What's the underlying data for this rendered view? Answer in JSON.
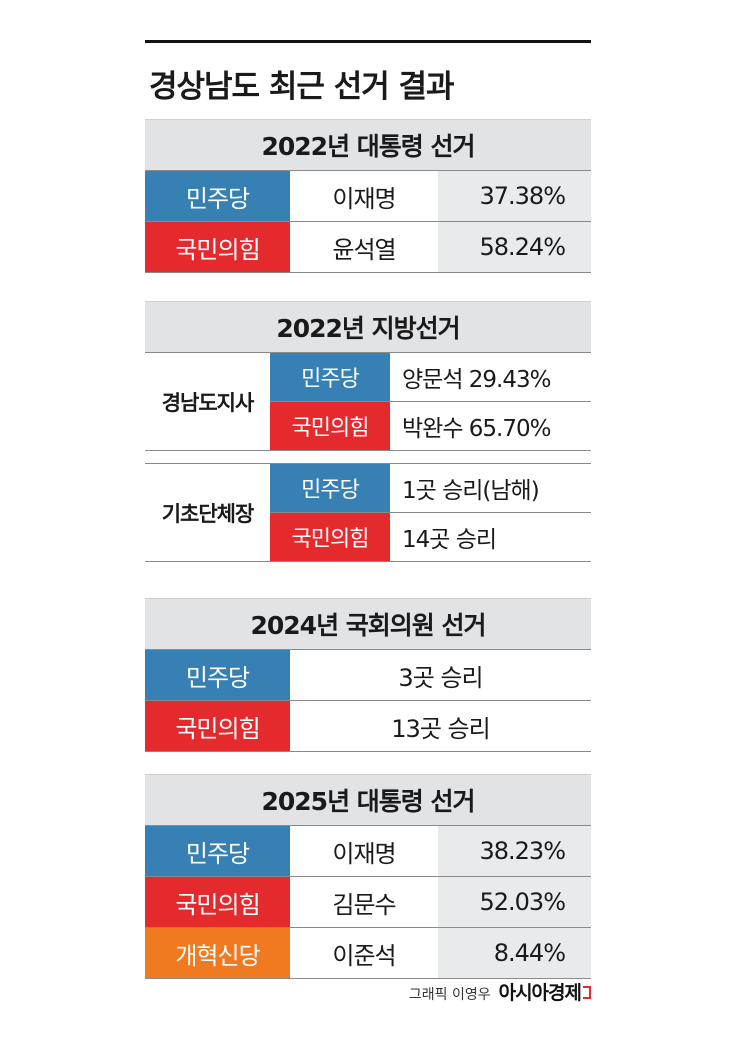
{
  "title": "경상남도 최근 선거 결과",
  "colors": {
    "minju": "#3680b4",
    "ppp": "#e52a2e",
    "reform": "#f07a1f"
  },
  "sections": [
    {
      "heading": "2022년 대통령 선거",
      "rows": [
        {
          "party": "민주당",
          "candidate": "이재명",
          "percent": "37.38%"
        },
        {
          "party": "국민의힘",
          "candidate": "윤석열",
          "percent": "58.24%"
        }
      ]
    },
    {
      "heading": "2022년 지방선거",
      "groups": [
        {
          "label": "경남도지사",
          "rows": [
            {
              "party": "민주당",
              "value": "양문석 29.43%"
            },
            {
              "party": "국민의힘",
              "value": "박완수 65.70%"
            }
          ]
        },
        {
          "label": "기초단체장",
          "rows": [
            {
              "party": "민주당",
              "value": "1곳 승리(남해)"
            },
            {
              "party": "국민의힘",
              "value": "14곳 승리"
            }
          ]
        }
      ]
    },
    {
      "heading": "2024년 국회의원 선거",
      "rows": [
        {
          "party": "민주당",
          "value": "3곳 승리"
        },
        {
          "party": "국민의힘",
          "value": "13곳 승리"
        }
      ]
    },
    {
      "heading": "2025년 대통령 선거",
      "rows": [
        {
          "party": "민주당",
          "candidate": "이재명",
          "percent": "38.23%"
        },
        {
          "party": "국민의힘",
          "candidate": "김문수",
          "percent": "52.03%"
        },
        {
          "party": "개혁신당",
          "candidate": "이준석",
          "percent": "8.44%"
        }
      ]
    }
  ],
  "credit": "그래픽 이영우",
  "brand": "아시아경제"
}
